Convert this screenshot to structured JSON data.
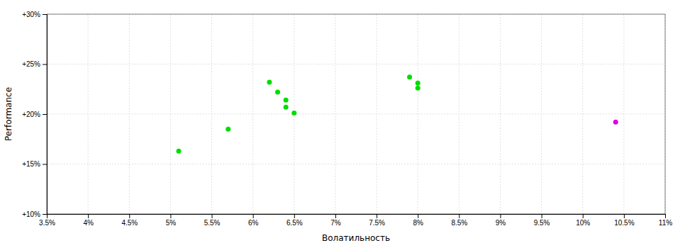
{
  "chart_data": {
    "type": "scatter",
    "xlabel": "Волатильность",
    "ylabel": "Performance",
    "xlim": [
      0.035,
      0.11
    ],
    "ylim": [
      0.1,
      0.3
    ],
    "xticks": [
      {
        "value": 0.035,
        "label": "3.5%"
      },
      {
        "value": 0.04,
        "label": "4%"
      },
      {
        "value": 0.045,
        "label": "4.5%"
      },
      {
        "value": 0.05,
        "label": "5%"
      },
      {
        "value": 0.055,
        "label": "5.5%"
      },
      {
        "value": 0.06,
        "label": "6%"
      },
      {
        "value": 0.065,
        "label": "6.5%"
      },
      {
        "value": 0.07,
        "label": "7%"
      },
      {
        "value": 0.075,
        "label": "7.5%"
      },
      {
        "value": 0.08,
        "label": "8%"
      },
      {
        "value": 0.085,
        "label": "8.5%"
      },
      {
        "value": 0.09,
        "label": "9%"
      },
      {
        "value": 0.095,
        "label": "9.5%"
      },
      {
        "value": 0.1,
        "label": "10%"
      },
      {
        "value": 0.105,
        "label": "10.5%"
      },
      {
        "value": 0.11,
        "label": "11%"
      }
    ],
    "yticks": [
      {
        "value": 0.1,
        "label": "+10%"
      },
      {
        "value": 0.15,
        "label": "+15%"
      },
      {
        "value": 0.2,
        "label": "+20%"
      },
      {
        "value": 0.25,
        "label": "+25%"
      },
      {
        "value": 0.3,
        "label": "+30%"
      }
    ],
    "grid": true,
    "series": [
      {
        "color": "#00dd00",
        "x": [
          0.051,
          0.057,
          0.062,
          0.063,
          0.064,
          0.064,
          0.065,
          0.079,
          0.08,
          0.08
        ],
        "values": [
          0.163,
          0.185,
          0.232,
          0.222,
          0.214,
          0.207,
          0.201,
          0.237,
          0.231,
          0.226
        ]
      },
      {
        "color": "#dd00dd",
        "x": [
          0.104
        ],
        "values": [
          0.192
        ]
      }
    ]
  }
}
